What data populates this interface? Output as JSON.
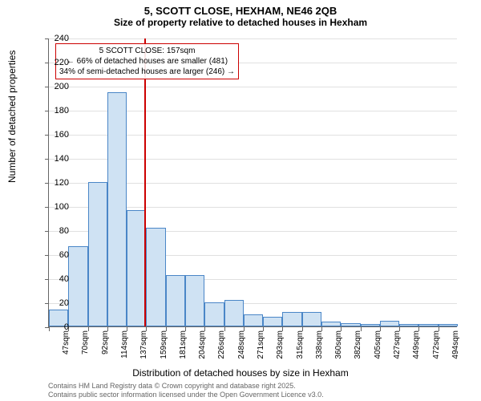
{
  "title": "5, SCOTT CLOSE, HEXHAM, NE46 2QB",
  "subtitle": "Size of property relative to detached houses in Hexham",
  "ylabel": "Number of detached properties",
  "xlabel": "Distribution of detached houses by size in Hexham",
  "footer_line1": "Contains HM Land Registry data © Crown copyright and database right 2025.",
  "footer_line2": "Contains public sector information licensed under the Open Government Licence v3.0.",
  "chart": {
    "type": "histogram",
    "ylim": [
      0,
      240
    ],
    "ytick_step": 20,
    "background_color": "#ffffff",
    "grid_color": "#e0e0e0",
    "axis_color": "#666666",
    "bar_fill": "#cfe2f3",
    "bar_stroke": "#4a86c7",
    "refline_color": "#cc0000",
    "refline_value": 157,
    "annotation": {
      "line1": "5 SCOTT CLOSE: 157sqm",
      "line2": "← 66% of detached houses are smaller (481)",
      "line3": "34% of semi-detached houses are larger (246) →",
      "border_color": "#cc0000"
    },
    "x_start": 47,
    "x_bin_width": 22.4,
    "x_ticks": [
      "47sqm",
      "70sqm",
      "92sqm",
      "114sqm",
      "137sqm",
      "159sqm",
      "181sqm",
      "204sqm",
      "226sqm",
      "248sqm",
      "271sqm",
      "293sqm",
      "315sqm",
      "338sqm",
      "360sqm",
      "382sqm",
      "405sqm",
      "427sqm",
      "449sqm",
      "472sqm",
      "494sqm"
    ],
    "values": [
      14,
      67,
      120,
      195,
      97,
      82,
      43,
      43,
      20,
      22,
      10,
      8,
      12,
      12,
      4,
      3,
      2,
      5,
      2,
      2,
      2
    ]
  }
}
